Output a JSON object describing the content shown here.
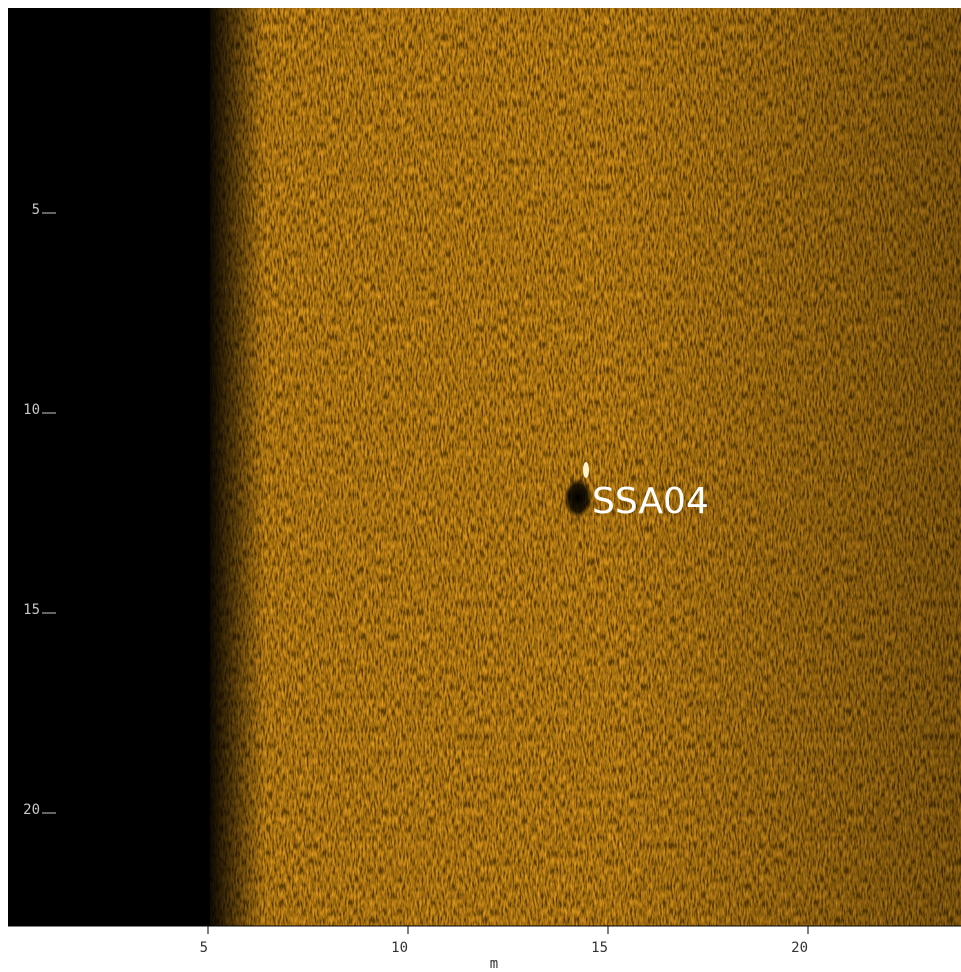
{
  "image": {
    "label": "SSA04"
  },
  "x_axis": {
    "label": "m",
    "ticks": [
      5,
      10,
      15,
      20
    ]
  },
  "y_axis": {
    "ticks": [
      5,
      10,
      15,
      20
    ]
  }
}
